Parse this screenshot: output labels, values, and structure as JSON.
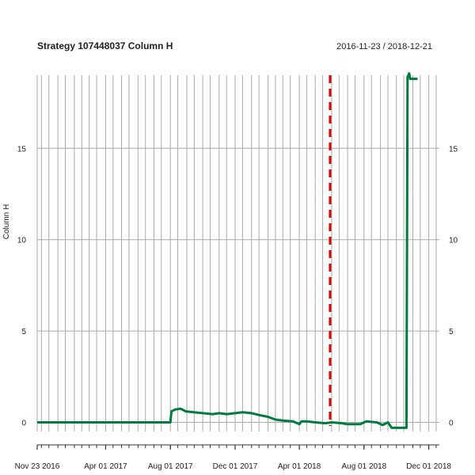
{
  "chart_data": {
    "type": "line",
    "title": "Strategy 107448037 Column H",
    "date_range": "2016-11-23 / 2018-12-21",
    "ylabel": "Column H",
    "xlabel": "",
    "xlim": [
      "2016-11-23",
      "2018-12-21"
    ],
    "ylim": [
      -0.5,
      19.0
    ],
    "y_ticks": [
      0,
      5,
      10,
      15
    ],
    "x_ticks": [
      {
        "date": "2016-11-23",
        "label": "Nov 23 2016"
      },
      {
        "date": "2017-04-01",
        "label": "Apr 01 2017"
      },
      {
        "date": "2017-08-01",
        "label": "Aug 01 2017"
      },
      {
        "date": "2017-12-01",
        "label": "Dec 01 2017"
      },
      {
        "date": "2018-04-01",
        "label": "Apr 01 2018"
      },
      {
        "date": "2018-08-01",
        "label": "Aug 01 2018"
      },
      {
        "date": "2018-12-01",
        "label": "Dec 01 2018"
      }
    ],
    "grid": "vertical and horizontal",
    "marker_line": {
      "date": "2018-05-29",
      "color": "#e00000",
      "style": "dashed"
    },
    "series": [
      {
        "color": "#007a3d",
        "points": [
          [
            "2016-11-23",
            0.0
          ],
          [
            "2017-08-01",
            0.0
          ],
          [
            "2017-08-03",
            0.6
          ],
          [
            "2017-08-10",
            0.7
          ],
          [
            "2017-08-20",
            0.75
          ],
          [
            "2017-08-30",
            0.6
          ],
          [
            "2017-09-15",
            0.55
          ],
          [
            "2017-10-01",
            0.5
          ],
          [
            "2017-10-20",
            0.45
          ],
          [
            "2017-11-01",
            0.5
          ],
          [
            "2017-11-15",
            0.45
          ],
          [
            "2017-12-01",
            0.5
          ],
          [
            "2017-12-15",
            0.55
          ],
          [
            "2018-01-01",
            0.5
          ],
          [
            "2018-01-15",
            0.4
          ],
          [
            "2018-02-01",
            0.3
          ],
          [
            "2018-02-15",
            0.15
          ],
          [
            "2018-03-01",
            0.1
          ],
          [
            "2018-03-20",
            0.05
          ],
          [
            "2018-04-01",
            -0.1
          ],
          [
            "2018-04-05",
            0.05
          ],
          [
            "2018-04-15",
            0.05
          ],
          [
            "2018-05-01",
            0.0
          ],
          [
            "2018-05-20",
            -0.05
          ],
          [
            "2018-06-01",
            0.0
          ],
          [
            "2018-06-20",
            -0.05
          ],
          [
            "2018-07-01",
            -0.1
          ],
          [
            "2018-07-25",
            -0.1
          ],
          [
            "2018-08-01",
            0.0
          ],
          [
            "2018-08-05",
            0.05
          ],
          [
            "2018-08-25",
            0.0
          ],
          [
            "2018-09-05",
            -0.15
          ],
          [
            "2018-09-15",
            0.0
          ],
          [
            "2018-09-22",
            -0.3
          ],
          [
            "2018-10-20",
            -0.3
          ],
          [
            "2018-10-22",
            18.9
          ],
          [
            "2018-10-25",
            19.1
          ],
          [
            "2018-10-27",
            18.8
          ],
          [
            "2018-11-10",
            18.8
          ]
        ]
      }
    ]
  }
}
